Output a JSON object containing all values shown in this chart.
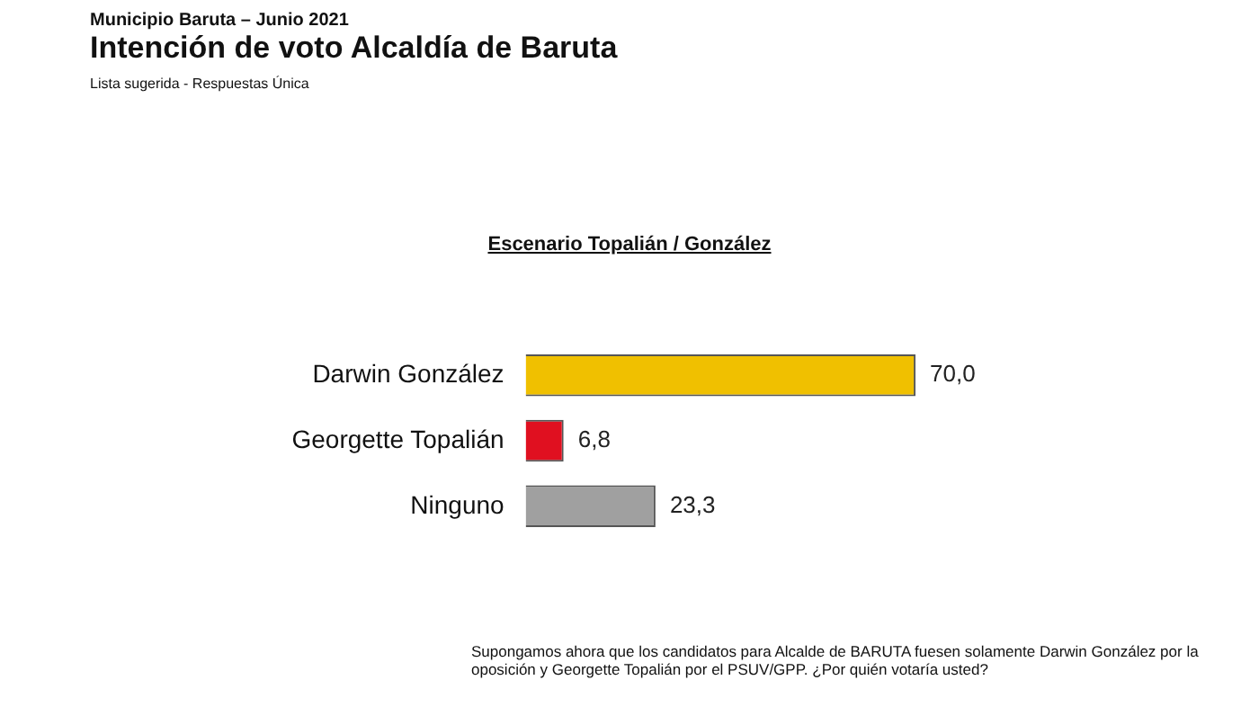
{
  "chart_data": {
    "type": "bar",
    "orientation": "horizontal",
    "title": "Intención de voto Alcaldía de Baruta",
    "subtitle": "Municipio Baruta – Junio 2021",
    "annotations": [
      "Lista sugerida - Respuestas Única",
      "Escenario Topalián / González",
      "Supongamos ahora que los candidatos para Alcalde de BARUTA fuesen solamente Darwin González por la oposición y Georgette Topalián por el PSUV/GPP. ¿Por quién votaría usted?"
    ],
    "categories": [
      "Darwin González",
      "Georgette Topalián",
      "Ninguno"
    ],
    "values": [
      70.0,
      6.8,
      23.3
    ],
    "colors": [
      "#f0c000",
      "#e01020",
      "#a0a0a0"
    ],
    "value_labels": [
      "70,0",
      "6,8",
      "23,3"
    ],
    "grid": false,
    "legend": false
  }
}
